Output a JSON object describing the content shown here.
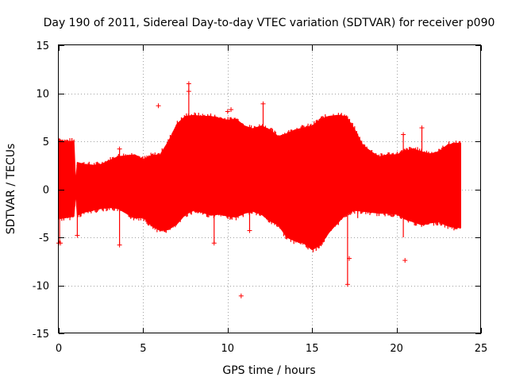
{
  "chart_data": {
    "type": "scatter",
    "title": "Day 190 of 2011, Sidereal Day-to-day VTEC variation (SDTVAR) for receiver p090",
    "xlabel": "GPS time / hours",
    "ylabel": "SDTVAR / TECUs",
    "xlim": [
      0,
      25
    ],
    "ylim": [
      -15,
      15
    ],
    "xticks": [
      0,
      5,
      10,
      15,
      20,
      25
    ],
    "yticks": [
      -15,
      -10,
      -5,
      0,
      5,
      10,
      15
    ],
    "x_tick_labels": [
      "0",
      "5",
      "10",
      "15",
      "20",
      "25"
    ],
    "y_tick_labels": [
      "-15",
      "-10",
      "-5",
      "0",
      "5",
      "10",
      "15"
    ],
    "grid": true,
    "marker": "+",
    "series": [
      {
        "name": "SDTVAR",
        "color": "#ff0000",
        "envelope": {
          "x": [
            0.0,
            0.3,
            0.6,
            0.9,
            1.0,
            1.1,
            1.5,
            2.0,
            2.5,
            3.0,
            3.5,
            4.0,
            4.5,
            5.0,
            5.5,
            6.0,
            6.5,
            7.0,
            7.5,
            8.0,
            8.5,
            9.0,
            9.5,
            10.0,
            10.5,
            11.0,
            11.5,
            12.0,
            12.5,
            13.0,
            13.5,
            14.0,
            14.5,
            15.0,
            15.5,
            16.0,
            16.5,
            17.0,
            17.5,
            18.0,
            18.5,
            19.0,
            19.5,
            20.0,
            20.5,
            21.0,
            21.5,
            22.0,
            22.5,
            23.0,
            23.5,
            23.8
          ],
          "upper": [
            5.2,
            5.0,
            5.0,
            5.0,
            0.8,
            2.8,
            2.6,
            2.5,
            2.6,
            3.0,
            3.4,
            3.5,
            3.6,
            3.1,
            3.5,
            3.6,
            5.0,
            6.8,
            7.6,
            7.7,
            7.6,
            7.6,
            7.4,
            7.2,
            7.3,
            6.6,
            6.3,
            6.6,
            6.2,
            5.5,
            5.8,
            6.2,
            6.4,
            6.6,
            7.3,
            7.6,
            7.7,
            7.6,
            6.3,
            4.6,
            3.9,
            3.4,
            3.6,
            3.6,
            4.0,
            4.2,
            3.9,
            3.7,
            3.9,
            4.6,
            4.8,
            4.8
          ],
          "lower": [
            -3.0,
            -3.0,
            -2.9,
            -2.8,
            -0.5,
            -2.7,
            -2.4,
            -2.2,
            -2.0,
            -1.9,
            -2.0,
            -2.5,
            -3.0,
            -2.9,
            -3.8,
            -4.3,
            -4.2,
            -3.6,
            -2.6,
            -2.2,
            -2.4,
            -2.7,
            -2.6,
            -2.8,
            -2.9,
            -2.5,
            -2.3,
            -2.6,
            -3.3,
            -3.7,
            -5.0,
            -5.4,
            -5.6,
            -6.3,
            -5.8,
            -4.5,
            -3.5,
            -2.6,
            -2.2,
            -2.3,
            -2.4,
            -2.5,
            -2.5,
            -2.6,
            -3.1,
            -3.4,
            -3.7,
            -3.5,
            -3.4,
            -3.8,
            -4.0,
            -4.0
          ]
        },
        "outliers": [
          {
            "x": 0.0,
            "y": -5.6
          },
          {
            "x": 0.1,
            "y": -5.6
          },
          {
            "x": 1.1,
            "y": -4.8
          },
          {
            "x": 3.6,
            "y": 4.2
          },
          {
            "x": 3.6,
            "y": -5.8
          },
          {
            "x": 5.9,
            "y": 8.7
          },
          {
            "x": 7.7,
            "y": 11.0
          },
          {
            "x": 7.7,
            "y": 10.2
          },
          {
            "x": 9.2,
            "y": -5.6
          },
          {
            "x": 10.0,
            "y": 8.1
          },
          {
            "x": 10.2,
            "y": 8.3
          },
          {
            "x": 10.8,
            "y": -11.1
          },
          {
            "x": 11.3,
            "y": -4.3
          },
          {
            "x": 12.1,
            "y": 8.9
          },
          {
            "x": 17.1,
            "y": -9.9
          },
          {
            "x": 17.2,
            "y": -7.2
          },
          {
            "x": 20.4,
            "y": 5.7
          },
          {
            "x": 20.5,
            "y": -7.4
          },
          {
            "x": 21.5,
            "y": 6.4
          }
        ],
        "spikes": [
          {
            "x": 0.05,
            "y_from": -5.6,
            "y_to": 5.3
          },
          {
            "x": 1.1,
            "y_from": -4.8,
            "y_to": 2.8
          },
          {
            "x": 3.6,
            "y_from": -5.8,
            "y_to": 4.2
          },
          {
            "x": 7.7,
            "y_from": -2.4,
            "y_to": 11.0
          },
          {
            "x": 9.2,
            "y_from": -5.6,
            "y_to": 7.6
          },
          {
            "x": 11.3,
            "y_from": -4.3,
            "y_to": 6.7
          },
          {
            "x": 12.1,
            "y_from": -2.6,
            "y_to": 8.9
          },
          {
            "x": 17.1,
            "y_from": -9.9,
            "y_to": 7.6
          },
          {
            "x": 17.7,
            "y_from": -3.0,
            "y_to": 3.0
          },
          {
            "x": 20.4,
            "y_from": -5.0,
            "y_to": 5.7
          },
          {
            "x": 21.5,
            "y_from": -3.7,
            "y_to": 6.4
          }
        ]
      }
    ]
  }
}
